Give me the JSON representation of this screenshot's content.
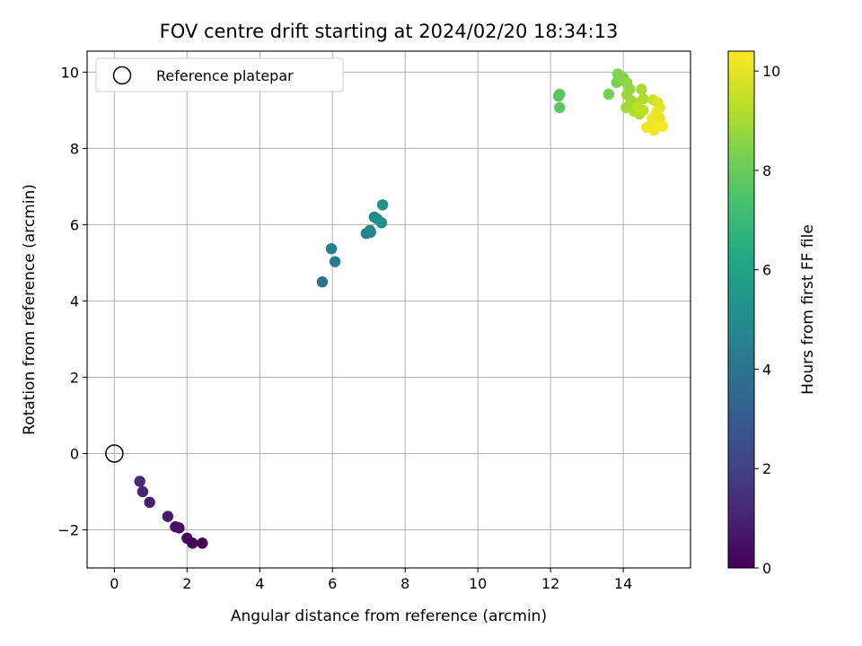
{
  "chart_data": {
    "type": "scatter",
    "title": "FOV centre drift starting at 2024/02/20 18:34:13",
    "xlabel": "Angular distance from reference (arcmin)",
    "ylabel": "Rotation from reference (arcmin)",
    "xlim": [
      -0.75,
      15.85
    ],
    "ylim": [
      -3.0,
      10.55
    ],
    "xticks": [
      0,
      2,
      4,
      6,
      8,
      10,
      12,
      14
    ],
    "yticks": [
      -2,
      0,
      2,
      4,
      6,
      8,
      10
    ],
    "xtick_labels": [
      "0",
      "2",
      "4",
      "6",
      "8",
      "10",
      "12",
      "14"
    ],
    "ytick_labels": [
      "−2",
      "0",
      "2",
      "4",
      "6",
      "8",
      "10"
    ],
    "grid": true,
    "legend": {
      "position": "top-left",
      "entries": [
        "Reference platepar"
      ]
    },
    "reference_point": {
      "label": "Reference platepar",
      "x": 0,
      "y": 0
    },
    "colorbar": {
      "label": "Hours from first FF file",
      "colormap": "viridis",
      "range": [
        0,
        10.4
      ],
      "ticks": [
        0,
        2,
        4,
        6,
        8,
        10
      ],
      "tick_labels": [
        "0",
        "2",
        "4",
        "6",
        "8",
        "10"
      ]
    },
    "points": [
      {
        "x": 2.42,
        "y": -2.35,
        "t": 0.0
      },
      {
        "x": 2.15,
        "y": -2.35,
        "t": 0.1
      },
      {
        "x": 2.0,
        "y": -2.22,
        "t": 0.2
      },
      {
        "x": 1.78,
        "y": -1.95,
        "t": 0.35
      },
      {
        "x": 1.68,
        "y": -1.92,
        "t": 0.5
      },
      {
        "x": 1.47,
        "y": -1.65,
        "t": 0.65
      },
      {
        "x": 0.97,
        "y": -1.28,
        "t": 0.9
      },
      {
        "x": 0.78,
        "y": -1.0,
        "t": 1.1
      },
      {
        "x": 0.7,
        "y": -0.73,
        "t": 1.3
      },
      {
        "x": 5.72,
        "y": 4.5,
        "t": 4.0
      },
      {
        "x": 6.07,
        "y": 5.03,
        "t": 4.2
      },
      {
        "x": 5.97,
        "y": 5.37,
        "t": 4.35
      },
      {
        "x": 6.93,
        "y": 5.77,
        "t": 4.6
      },
      {
        "x": 7.05,
        "y": 5.8,
        "t": 4.7
      },
      {
        "x": 7.03,
        "y": 5.85,
        "t": 4.8
      },
      {
        "x": 7.15,
        "y": 6.2,
        "t": 4.95
      },
      {
        "x": 7.35,
        "y": 6.05,
        "t": 5.05
      },
      {
        "x": 7.23,
        "y": 6.15,
        "t": 5.15
      },
      {
        "x": 7.38,
        "y": 6.52,
        "t": 5.3
      },
      {
        "x": 12.22,
        "y": 9.37,
        "t": 7.6
      },
      {
        "x": 12.25,
        "y": 9.42,
        "t": 7.7
      },
      {
        "x": 12.25,
        "y": 9.07,
        "t": 7.75
      },
      {
        "x": 13.6,
        "y": 9.42,
        "t": 8.2
      },
      {
        "x": 13.82,
        "y": 9.73,
        "t": 8.3
      },
      {
        "x": 13.85,
        "y": 9.95,
        "t": 8.4
      },
      {
        "x": 14.0,
        "y": 9.85,
        "t": 8.5
      },
      {
        "x": 14.1,
        "y": 9.72,
        "t": 8.6
      },
      {
        "x": 14.18,
        "y": 9.55,
        "t": 8.7
      },
      {
        "x": 14.1,
        "y": 9.4,
        "t": 8.8
      },
      {
        "x": 14.22,
        "y": 9.25,
        "t": 8.85
      },
      {
        "x": 14.08,
        "y": 9.07,
        "t": 8.95
      },
      {
        "x": 14.35,
        "y": 9.18,
        "t": 9.0
      },
      {
        "x": 14.5,
        "y": 9.55,
        "t": 9.05
      },
      {
        "x": 14.55,
        "y": 9.3,
        "t": 9.1
      },
      {
        "x": 14.3,
        "y": 8.97,
        "t": 9.2
      },
      {
        "x": 14.45,
        "y": 8.9,
        "t": 9.25
      },
      {
        "x": 14.55,
        "y": 9.0,
        "t": 9.35
      },
      {
        "x": 14.4,
        "y": 9.1,
        "t": 9.4
      },
      {
        "x": 14.82,
        "y": 9.27,
        "t": 9.6
      },
      {
        "x": 14.95,
        "y": 9.2,
        "t": 9.8
      },
      {
        "x": 15.0,
        "y": 9.07,
        "t": 9.9
      },
      {
        "x": 14.92,
        "y": 8.95,
        "t": 10.0
      },
      {
        "x": 15.0,
        "y": 8.8,
        "t": 10.05
      },
      {
        "x": 14.8,
        "y": 8.78,
        "t": 10.1
      },
      {
        "x": 14.65,
        "y": 8.55,
        "t": 10.15
      },
      {
        "x": 14.85,
        "y": 8.48,
        "t": 10.2
      },
      {
        "x": 14.92,
        "y": 8.62,
        "t": 10.25
      },
      {
        "x": 15.08,
        "y": 8.58,
        "t": 10.3
      }
    ]
  }
}
